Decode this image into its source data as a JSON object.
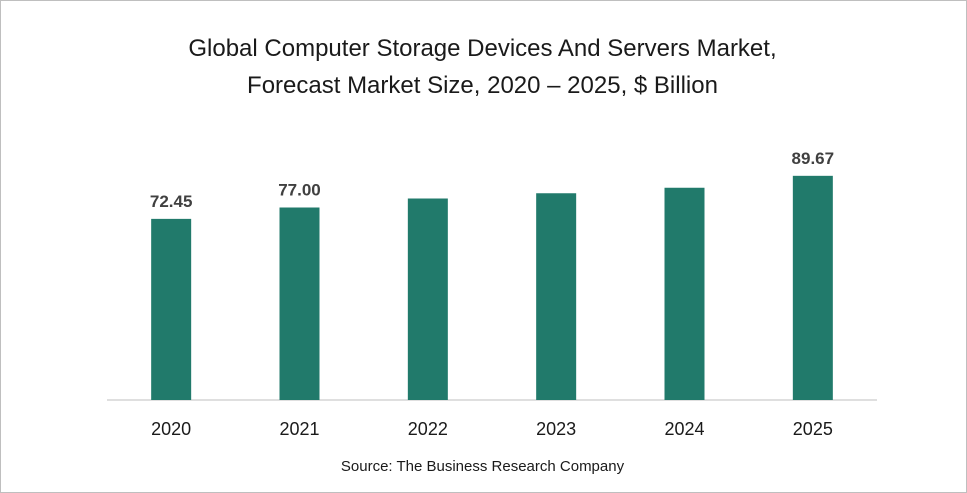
{
  "chart_data": {
    "type": "bar",
    "title_line1": "Global Computer Storage Devices And Servers Market,",
    "title_line2": "Forecast Market Size, 2020 – 2025, $ Billion",
    "categories": [
      "2020",
      "2021",
      "2022",
      "2023",
      "2024",
      "2025"
    ],
    "values": [
      72.45,
      77.0,
      80.6,
      82.7,
      84.9,
      89.67
    ],
    "data_labels": [
      "72.45",
      "77.00",
      "",
      "",
      "",
      "89.67"
    ],
    "xlabel": "",
    "ylabel": "",
    "ylim": [
      0,
      100
    ],
    "grid": false,
    "legend": "none",
    "bar_color": "#217a6b",
    "source": "Source: The Business Research Company"
  }
}
